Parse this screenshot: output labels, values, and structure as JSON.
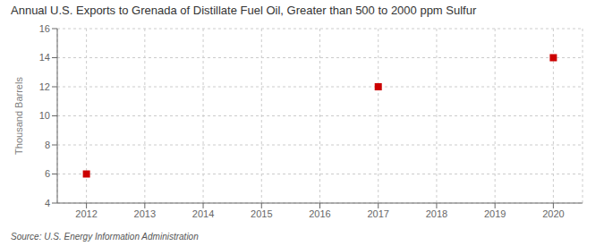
{
  "chart_data": {
    "type": "scatter",
    "title": "Annual U.S. Exports to Grenada of Distillate Fuel Oil, Greater than 500 to 2000 ppm Sulfur",
    "ylabel": "Thousand Barrels",
    "source": "Source: U.S. Energy Information Administration",
    "x": [
      2012,
      2017,
      2020
    ],
    "values": [
      6,
      12,
      14
    ],
    "color": "#cc0000",
    "marker": "square",
    "xlim": [
      2011.5,
      2020.5
    ],
    "xticks": [
      2012,
      2013,
      2014,
      2015,
      2016,
      2017,
      2018,
      2019,
      2020
    ],
    "ylim": [
      4,
      16
    ],
    "yticks": [
      4,
      6,
      8,
      10,
      12,
      14,
      16
    ],
    "grid": true
  }
}
